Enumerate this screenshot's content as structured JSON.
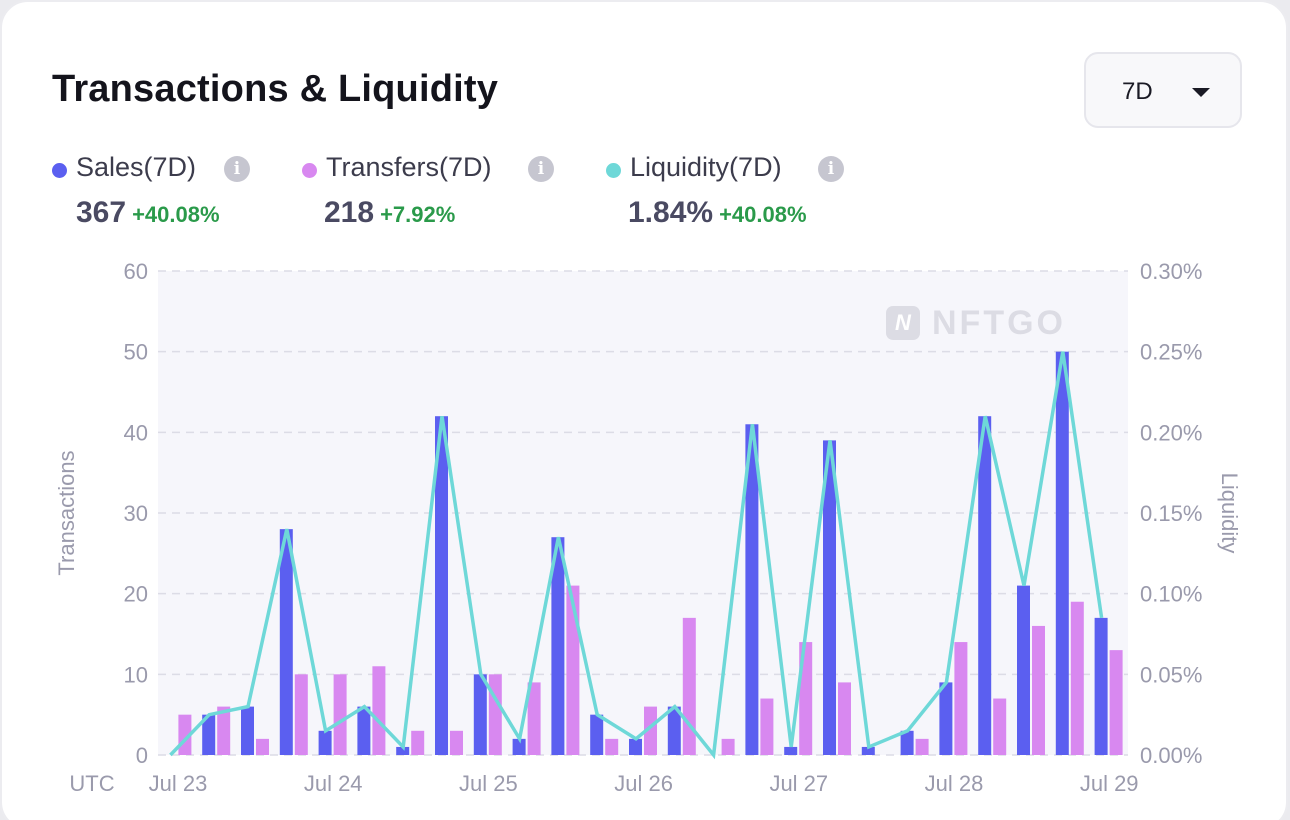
{
  "header": {
    "title": "Transactions & Liquidity"
  },
  "range_select": {
    "value": "7D"
  },
  "legend": [
    {
      "key": "sales",
      "name": "Sales(7D)",
      "color": "#5b5ff0",
      "value": "367",
      "change": "+40.08%"
    },
    {
      "key": "transfers",
      "name": "Transfers(7D)",
      "color": "#d888f0",
      "value": "218",
      "change": "+7.92%"
    },
    {
      "key": "liquidity",
      "name": "Liquidity(7D)",
      "color": "#6ed8d8",
      "value": "1.84%",
      "change": "+40.08%"
    }
  ],
  "info_icon": "info-icon",
  "watermark": {
    "text": "NFTGO",
    "logo_letter": "N"
  },
  "chart_data": {
    "type": "bar",
    "combo": "grouped bars + line on secondary axis",
    "timezone_label": "UTC",
    "x_tick_labels": [
      "Jul 23",
      "Jul 24",
      "Jul 25",
      "Jul 26",
      "Jul 27",
      "Jul 28",
      "Jul 29"
    ],
    "periods_per_day": 4,
    "ylabel": "Transactions",
    "y2label": "Liquidity",
    "ylim": [
      0,
      60
    ],
    "yticks": [
      0,
      10,
      20,
      30,
      40,
      50,
      60
    ],
    "y2lim": [
      0,
      0.3
    ],
    "y2ticks": [
      "0.00%",
      "0.05%",
      "0.10%",
      "0.15%",
      "0.20%",
      "0.25%",
      "0.30%"
    ],
    "grid": true,
    "series": [
      {
        "name": "Sales(7D)",
        "type": "bar",
        "color": "#5b5ff0",
        "values": [
          0,
          5,
          6,
          28,
          3,
          6,
          1,
          42,
          10,
          2,
          27,
          5,
          2,
          6,
          0,
          41,
          1,
          39,
          1,
          3,
          9,
          42,
          21,
          50,
          17
        ]
      },
      {
        "name": "Transfers(7D)",
        "type": "bar",
        "color": "#d888f0",
        "values": [
          5,
          6,
          2,
          10,
          10,
          11,
          3,
          3,
          10,
          9,
          21,
          2,
          6,
          17,
          2,
          7,
          14,
          9,
          0,
          2,
          14,
          7,
          16,
          19,
          13
        ]
      },
      {
        "name": "Liquidity(7D)",
        "type": "line",
        "color": "#6ed8d8",
        "unit": "%",
        "values": [
          0,
          0.025,
          0.03,
          0.14,
          0.015,
          0.03,
          0.005,
          0.21,
          0.05,
          0.01,
          0.135,
          0.025,
          0.01,
          0.03,
          0,
          0.205,
          0.005,
          0.195,
          0.005,
          0.015,
          0.045,
          0.21,
          0.105,
          0.25,
          0.085
        ]
      }
    ]
  }
}
